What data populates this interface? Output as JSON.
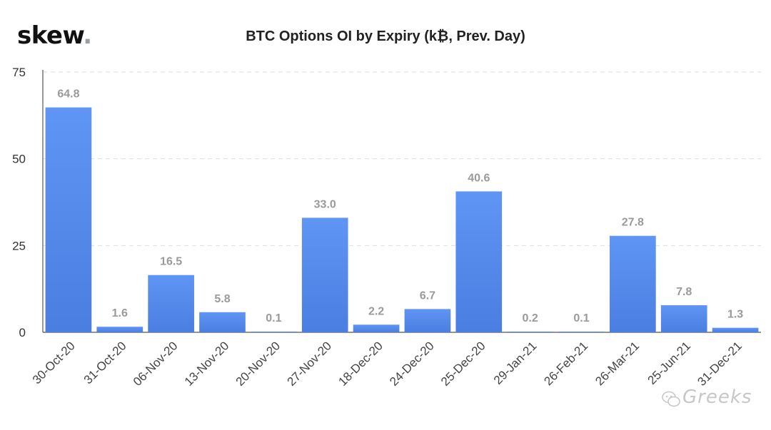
{
  "brand": {
    "name": "skew",
    "dot": "."
  },
  "watermark": {
    "text": "Greeks"
  },
  "colors": {
    "bar_top": "#5f95f5",
    "bar_bottom": "#4a7ee0",
    "grid": "#dddddd",
    "axis": "#555555",
    "label": "#9a9a9a"
  },
  "chart_data": {
    "type": "bar",
    "title": "BTC Options OI by Expiry (k₿, Prev. Day)",
    "xlabel": "",
    "ylabel": "",
    "ylim": [
      0,
      75
    ],
    "yticks": [
      0,
      25,
      50,
      75
    ],
    "grid": true,
    "categories": [
      "30-Oct-20",
      "31-Oct-20",
      "06-Nov-20",
      "13-Nov-20",
      "20-Nov-20",
      "27-Nov-20",
      "18-Dec-20",
      "24-Dec-20",
      "25-Dec-20",
      "29-Jan-21",
      "26-Feb-21",
      "26-Mar-21",
      "25-Jun-21",
      "31-Dec-21"
    ],
    "values": [
      64.8,
      1.6,
      16.5,
      5.8,
      0.1,
      33.0,
      2.2,
      6.7,
      40.6,
      0.2,
      0.1,
      27.8,
      7.8,
      1.3
    ],
    "value_labels": [
      "64.8",
      "1.6",
      "16.5",
      "5.8",
      "0.1",
      "33.0",
      "2.2",
      "6.7",
      "40.6",
      "0.2",
      "0.1",
      "27.8",
      "7.8",
      "1.3"
    ]
  }
}
